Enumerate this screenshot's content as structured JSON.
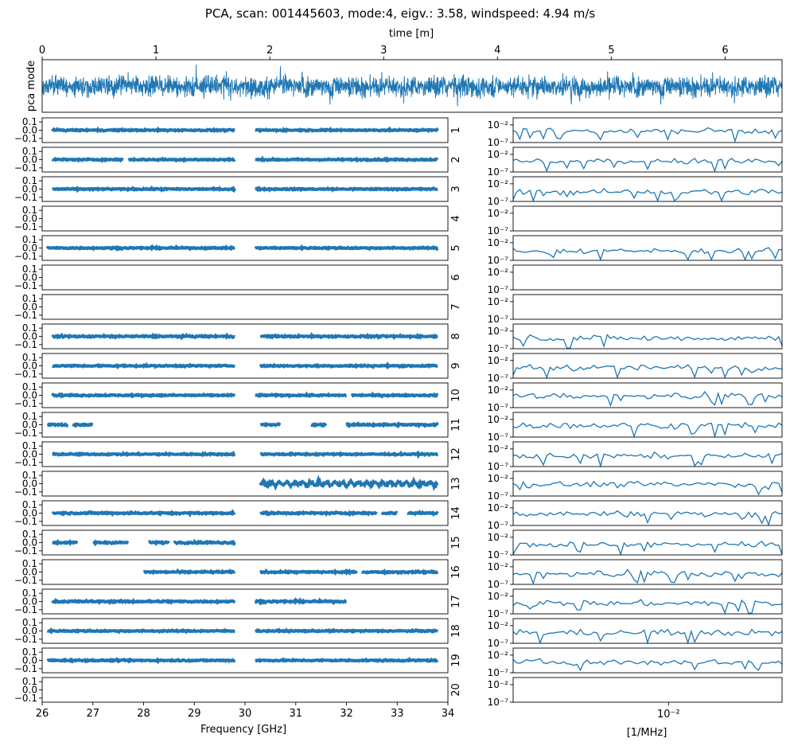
{
  "chart_data": {
    "type": "line",
    "title": "PCA, scan: 001445603, mode:4, eigv.: 3.58, windspeed: 4.94 m/s",
    "top_panel": {
      "ylabel": "pca mode",
      "xlabel": "time [m]",
      "xlim": [
        0,
        6.5
      ],
      "xticks": [
        "0",
        "1",
        "2",
        "3",
        "4",
        "5",
        "6"
      ],
      "xtick_values": [
        0,
        1,
        2,
        3,
        4,
        5,
        6
      ],
      "ylim": [
        -1,
        1
      ]
    },
    "frequency_panels": {
      "xlabel": "Frequency [GHz]",
      "xlim": [
        26,
        34
      ],
      "xticks": [
        "26",
        "27",
        "28",
        "29",
        "30",
        "31",
        "32",
        "33",
        "34"
      ],
      "xtick_values": [
        26,
        27,
        28,
        29,
        30,
        31,
        32,
        33,
        34
      ],
      "ylim": [
        -0.15,
        0.15
      ],
      "yticks": [
        "0.1",
        "0.0",
        "−0.1"
      ],
      "ytick_values": [
        0.1,
        0.0,
        -0.1
      ]
    },
    "psd_panels": {
      "xlabel": "[1/MHz]",
      "xscale": "log",
      "xlim": [
        0.0015,
        0.04
      ],
      "xtick_label": "10⁻²",
      "xtick_value": 0.01,
      "yscale": "log",
      "ylim": [
        1e-07,
        1
      ],
      "yticks": [
        "10⁻²",
        "10⁻⁷"
      ],
      "ytick_values": [
        0.01,
        1e-07
      ]
    },
    "feeds": [
      {
        "label": "1",
        "segments": [
          [
            26.2,
            29.8
          ],
          [
            30.2,
            33.8
          ]
        ],
        "amplitude": 0.012,
        "psd_level": 0.0002
      },
      {
        "label": "2",
        "segments": [
          [
            26.2,
            27.6
          ],
          [
            27.7,
            29.8
          ],
          [
            30.2,
            33.8
          ]
        ],
        "amplitude": 0.012,
        "psd_level": 0.0001
      },
      {
        "label": "3",
        "segments": [
          [
            26.2,
            29.8
          ],
          [
            30.2,
            33.8
          ]
        ],
        "amplitude": 0.012,
        "psd_level": 5e-05
      },
      {
        "label": "4",
        "segments": [],
        "amplitude": 0,
        "psd_level": null
      },
      {
        "label": "5",
        "segments": [
          [
            26.1,
            29.8
          ],
          [
            30.2,
            33.8
          ]
        ],
        "amplitude": 0.012,
        "psd_level": 5e-05
      },
      {
        "label": "6",
        "segments": [],
        "amplitude": 0,
        "psd_level": null
      },
      {
        "label": "7",
        "segments": [],
        "amplitude": 0,
        "psd_level": null
      },
      {
        "label": "8",
        "segments": [
          [
            26.2,
            29.8
          ],
          [
            30.3,
            33.8
          ]
        ],
        "amplitude": 0.014,
        "psd_level": 0.0001
      },
      {
        "label": "9",
        "segments": [
          [
            26.2,
            29.8
          ],
          [
            30.3,
            33.8
          ]
        ],
        "amplitude": 0.012,
        "psd_level": 0.0001
      },
      {
        "label": "10",
        "segments": [
          [
            26.2,
            29.8
          ],
          [
            30.2,
            32.0
          ],
          [
            32.1,
            33.8
          ]
        ],
        "amplitude": 0.012,
        "psd_level": 0.0002
      },
      {
        "label": "11",
        "segments": [
          [
            26.1,
            26.5
          ],
          [
            26.6,
            27.0
          ],
          [
            30.3,
            30.7
          ],
          [
            31.3,
            31.6
          ],
          [
            32.0,
            33.8
          ]
        ],
        "amplitude": 0.014,
        "psd_level": 0.0002
      },
      {
        "label": "12",
        "segments": [
          [
            26.2,
            29.8
          ],
          [
            30.3,
            33.8
          ]
        ],
        "amplitude": 0.012,
        "psd_level": 0.0001
      },
      {
        "label": "13",
        "segments": [
          [
            30.3,
            33.8
          ]
        ],
        "amplitude": 0.025,
        "psd_level": 0.0002
      },
      {
        "label": "14",
        "segments": [
          [
            26.2,
            29.8
          ],
          [
            30.3,
            32.6
          ],
          [
            32.7,
            33.0
          ],
          [
            33.2,
            33.8
          ]
        ],
        "amplitude": 0.014,
        "psd_level": 0.0002
      },
      {
        "label": "15",
        "segments": [
          [
            26.2,
            26.7
          ],
          [
            27.0,
            27.7
          ],
          [
            28.1,
            28.5
          ],
          [
            28.6,
            29.8
          ]
        ],
        "amplitude": 0.014,
        "psd_level": 0.0001
      },
      {
        "label": "16",
        "segments": [
          [
            28.0,
            29.8
          ],
          [
            30.3,
            32.2
          ],
          [
            32.3,
            33.8
          ]
        ],
        "amplitude": 0.014,
        "psd_level": 0.0001
      },
      {
        "label": "17",
        "segments": [
          [
            26.2,
            29.8
          ],
          [
            30.2,
            32.0
          ]
        ],
        "amplitude": 0.014,
        "psd_level": 0.0001
      },
      {
        "label": "18",
        "segments": [
          [
            26.1,
            29.8
          ],
          [
            30.2,
            33.8
          ]
        ],
        "amplitude": 0.012,
        "psd_level": 0.0001
      },
      {
        "label": "19",
        "segments": [
          [
            26.1,
            29.8
          ],
          [
            30.2,
            33.8
          ]
        ],
        "amplitude": 0.012,
        "psd_level": 0.0001
      },
      {
        "label": "20",
        "segments": [],
        "amplitude": 0,
        "psd_level": null
      }
    ]
  },
  "colors": {
    "trace": "#1f77b4",
    "axis": "#000000"
  }
}
